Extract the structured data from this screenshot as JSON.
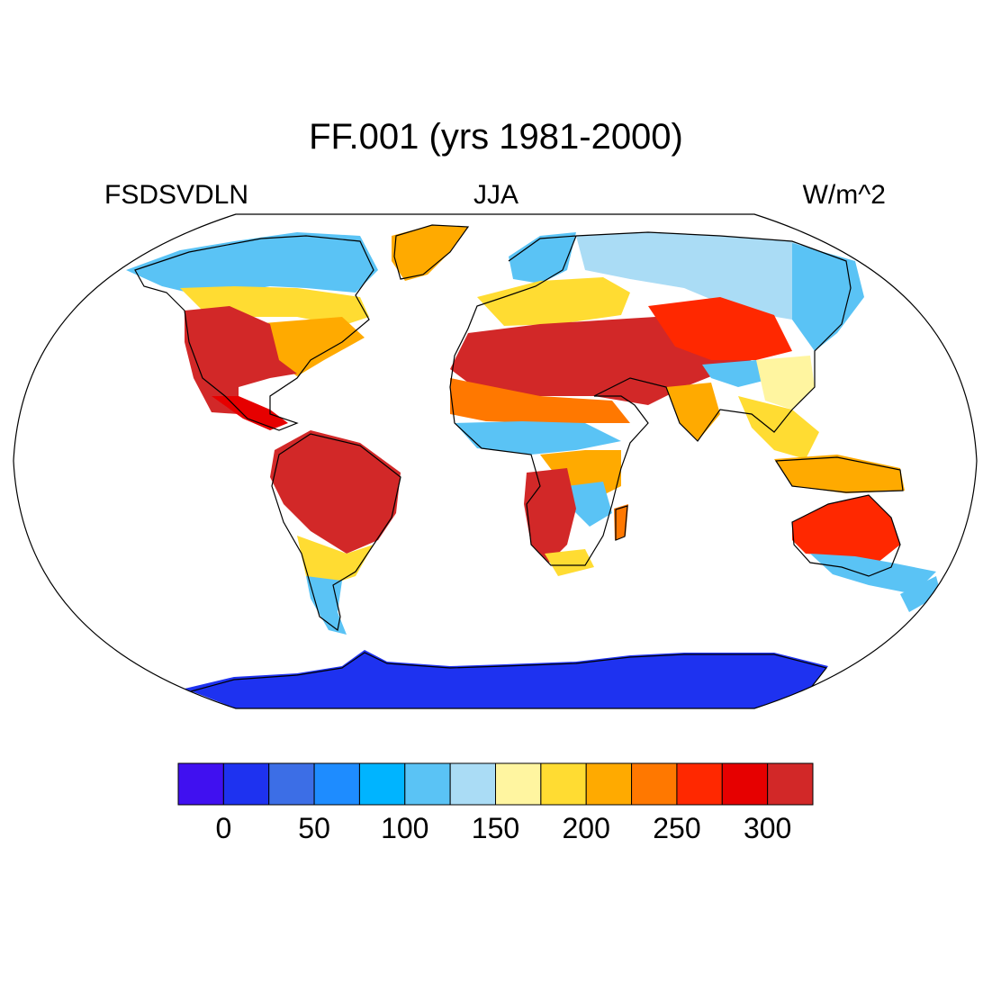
{
  "title": "FF.001 (yrs 1981-2000)",
  "left_label": "FSDSVDLN",
  "center_label": "JJA",
  "right_label": "W/m^2",
  "colorbar": {
    "colors": [
      "#4010f0",
      "#1e32f0",
      "#3c6ee6",
      "#1e8cff",
      "#00b4ff",
      "#5ac3f5",
      "#aadcf5",
      "#fff5a0",
      "#ffdc32",
      "#ffaa00",
      "#ff7800",
      "#ff2800",
      "#e60000",
      "#d22828"
    ],
    "tick_labels": [
      "0",
      "50",
      "100",
      "150",
      "200",
      "250",
      "300"
    ]
  },
  "map": {
    "projection": "Robinson (global)",
    "field": "FSDSVDLN",
    "units": "W/m^2",
    "ocean": "no data (white)",
    "regions": [
      {
        "name": "Antarctica",
        "level": 1
      },
      {
        "name": "Sahara / Middle East",
        "level": 12
      },
      {
        "name": "Central Asia",
        "level": 11
      },
      {
        "name": "Western North America",
        "level": 12
      },
      {
        "name": "Amazon / Brazil",
        "level": 12
      },
      {
        "name": "Southern Africa",
        "level": 12
      },
      {
        "name": "Central Australia",
        "level": 11
      },
      {
        "name": "Siberia",
        "level": 5
      },
      {
        "name": "Northern Canada",
        "level": 4
      },
      {
        "name": "Greenland",
        "level": 9
      },
      {
        "name": "Sahel",
        "level": 5
      },
      {
        "name": "Southeast Asia",
        "level": 8
      }
    ]
  }
}
